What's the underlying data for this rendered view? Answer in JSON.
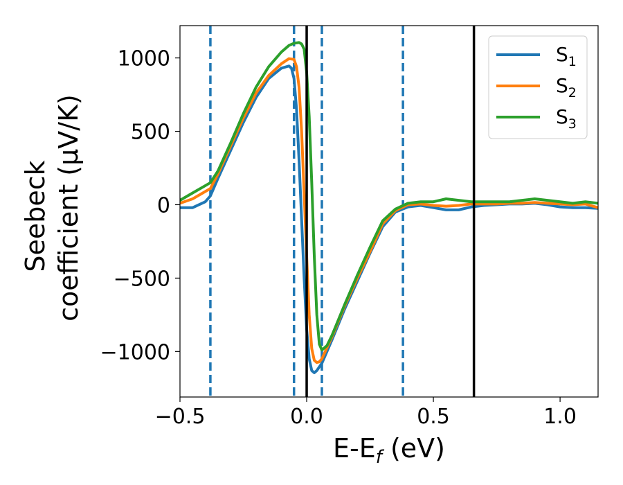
{
  "chart_data": {
    "type": "line",
    "xlabel": "E-E",
    "xlabel_sub": "f",
    "xlabel_unit": " (eV)",
    "ylabel_line1": "Seebeck",
    "ylabel_line2": "coefficient  (μV/K)",
    "xlim": [
      -0.5,
      1.15
    ],
    "ylim": [
      -1310,
      1220
    ],
    "xticks": [
      -0.5,
      0.0,
      0.5,
      1.0
    ],
    "xtick_labels": [
      "−0.5",
      "0.0",
      "0.5",
      "1.0"
    ],
    "yticks": [
      -1000,
      -500,
      0,
      500,
      1000
    ],
    "ytick_labels": [
      "−1000",
      "−500",
      "0",
      "500",
      "1000"
    ],
    "grid": false,
    "legend_position": "top-right",
    "solid_vlines": [
      0.0,
      0.66
    ],
    "dashed_vlines": [
      -0.38,
      -0.05,
      0.06,
      0.38
    ],
    "series": [
      {
        "name": "S",
        "name_sub": "1",
        "color": "#1f77b4",
        "x": [
          -0.5,
          -0.45,
          -0.4,
          -0.38,
          -0.35,
          -0.3,
          -0.25,
          -0.2,
          -0.15,
          -0.1,
          -0.07,
          -0.06,
          -0.05,
          -0.04,
          -0.03,
          -0.02,
          -0.01,
          0.0,
          0.01,
          0.02,
          0.03,
          0.04,
          0.06,
          0.1,
          0.15,
          0.2,
          0.25,
          0.3,
          0.35,
          0.4,
          0.45,
          0.5,
          0.55,
          0.6,
          0.65,
          0.7,
          0.75,
          0.8,
          0.85,
          0.9,
          0.95,
          1.0,
          1.05,
          1.1,
          1.15
        ],
        "y": [
          -20,
          -20,
          20,
          60,
          180,
          370,
          560,
          730,
          860,
          930,
          945,
          930,
          860,
          650,
          300,
          -100,
          -500,
          -850,
          -1050,
          -1130,
          -1145,
          -1130,
          -1080,
          -920,
          -710,
          -520,
          -330,
          -150,
          -50,
          -15,
          -5,
          -20,
          -35,
          -35,
          -15,
          -5,
          0,
          5,
          5,
          10,
          0,
          -15,
          -20,
          -20,
          -25
        ]
      },
      {
        "name": "S",
        "name_sub": "2",
        "color": "#ff7f0e",
        "x": [
          -0.5,
          -0.45,
          -0.4,
          -0.38,
          -0.35,
          -0.3,
          -0.25,
          -0.2,
          -0.15,
          -0.1,
          -0.07,
          -0.05,
          -0.04,
          -0.03,
          -0.02,
          -0.01,
          0.0,
          0.01,
          0.02,
          0.03,
          0.04,
          0.05,
          0.06,
          0.1,
          0.15,
          0.2,
          0.25,
          0.3,
          0.35,
          0.4,
          0.45,
          0.5,
          0.55,
          0.6,
          0.65,
          0.7,
          0.75,
          0.8,
          0.85,
          0.9,
          0.95,
          1.0,
          1.05,
          1.1,
          1.15
        ],
        "y": [
          10,
          40,
          90,
          110,
          210,
          400,
          590,
          760,
          880,
          960,
          995,
          990,
          940,
          800,
          500,
          80,
          -350,
          -750,
          -980,
          -1060,
          -1075,
          -1070,
          -1050,
          -900,
          -690,
          -500,
          -320,
          -130,
          -40,
          0,
          5,
          -5,
          -10,
          -5,
          5,
          5,
          5,
          10,
          10,
          15,
          10,
          5,
          0,
          5,
          -20
        ]
      },
      {
        "name": "S",
        "name_sub": "3",
        "color": "#2ca02c",
        "x": [
          -0.5,
          -0.45,
          -0.4,
          -0.38,
          -0.35,
          -0.3,
          -0.25,
          -0.2,
          -0.15,
          -0.1,
          -0.07,
          -0.05,
          -0.03,
          -0.02,
          -0.01,
          0.0,
          0.01,
          0.02,
          0.03,
          0.04,
          0.05,
          0.06,
          0.08,
          0.1,
          0.15,
          0.2,
          0.25,
          0.3,
          0.35,
          0.4,
          0.45,
          0.5,
          0.55,
          0.6,
          0.65,
          0.7,
          0.75,
          0.8,
          0.85,
          0.9,
          0.95,
          1.0,
          1.05,
          1.1,
          1.15
        ],
        "y": [
          30,
          80,
          130,
          150,
          230,
          420,
          620,
          800,
          940,
          1040,
          1085,
          1100,
          1105,
          1095,
          1060,
          900,
          600,
          150,
          -350,
          -750,
          -950,
          -990,
          -960,
          -890,
          -680,
          -480,
          -290,
          -110,
          -30,
          10,
          20,
          20,
          40,
          30,
          20,
          20,
          20,
          20,
          30,
          40,
          30,
          20,
          10,
          20,
          10
        ]
      }
    ]
  }
}
